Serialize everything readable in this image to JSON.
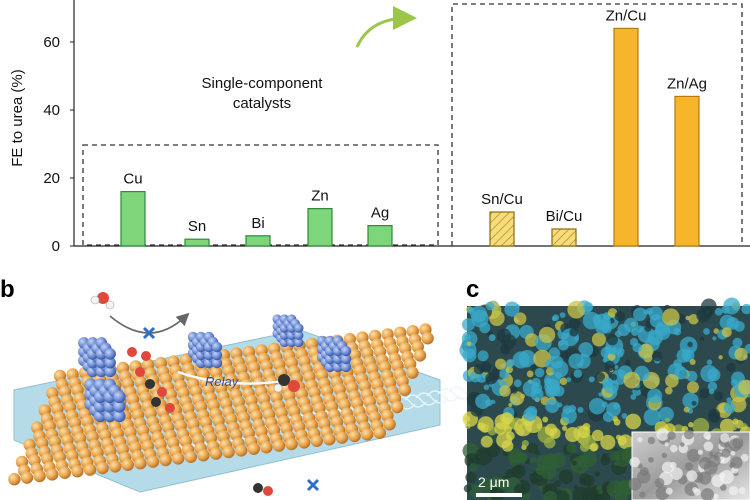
{
  "chart_data": {
    "type": "bar",
    "ylabel": "FE to urea (%)",
    "ylim": [
      0,
      70
    ],
    "yticks": [
      0,
      20,
      40,
      60
    ],
    "grid": false,
    "annotation": "Single-component catalysts",
    "groups": [
      {
        "name": "single-component",
        "categories": [
          "Cu",
          "Sn",
          "Bi",
          "Zn",
          "Ag"
        ],
        "values": [
          16,
          2,
          3,
          11,
          6
        ],
        "style": "solid-green"
      },
      {
        "name": "bimetallic",
        "categories": [
          "Sn/Cu",
          "Bi/Cu",
          "Zn/Cu",
          "Zn/Ag"
        ],
        "values": [
          10,
          5,
          64,
          44
        ],
        "styles": [
          "hatched-yellow",
          "hatched-yellow",
          "solid-orange",
          "solid-orange"
        ]
      }
    ]
  },
  "colors": {
    "green": "#7fd67a",
    "green_edge": "#2e8a3a",
    "orange": "#f7b52b",
    "orange_edge": "#b47a10",
    "hatch_fill": "#f6dc7a",
    "arrow": "#9bc64a",
    "substrate": "#b6dbe8",
    "atom_gold": "#e9a44c",
    "cluster_blue": "#6f8fd6"
  },
  "panels": {
    "b": {
      "letter": "b",
      "relay_label": "Relay"
    },
    "c": {
      "letter": "c",
      "scalebar_label": "2 μm"
    }
  }
}
